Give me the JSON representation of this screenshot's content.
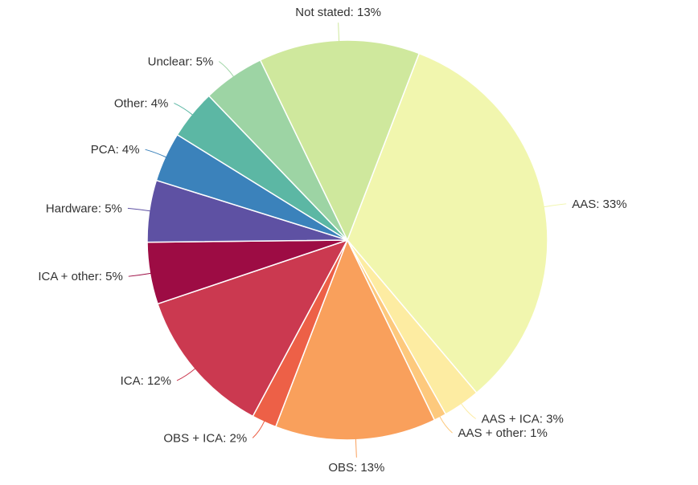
{
  "chart_data": {
    "type": "pie",
    "categories": [
      "AAS",
      "AAS + ICA",
      "AAS + other",
      "OBS",
      "OBS + ICA",
      "ICA",
      "ICA + other",
      "Hardware",
      "PCA",
      "Other",
      "Unclear",
      "Not stated"
    ],
    "values": [
      33,
      3,
      1,
      13,
      2,
      12,
      5,
      5,
      4,
      4,
      5,
      13
    ],
    "unit": "%",
    "display_labels": [
      "AAS: 33%",
      "AAS + ICA: 3%",
      "AAS + other: 1%",
      "OBS: 13%",
      "OBS + ICA: 2%",
      "ICA: 12%",
      "ICA + other: 5%",
      "Hardware: 5%",
      "PCA: 4%",
      "Other: 4%",
      "Unclear: 5%",
      "Not stated: 13%"
    ],
    "colors": [
      "#f1f6ae",
      "#fdeca2",
      "#fdc97d",
      "#f9a05c",
      "#ed6047",
      "#cb3950",
      "#9d0c44",
      "#5e51a3",
      "#3b82bb",
      "#5cb7a4",
      "#9dd4a4",
      "#cfe89d"
    ],
    "layout": {
      "start_angle_deg": 21,
      "direction": "clockwise",
      "labels_position": "outside",
      "leader_lines": true,
      "legend": false,
      "label_color": "#333333",
      "slice_border_color": "#ffffff"
    }
  }
}
